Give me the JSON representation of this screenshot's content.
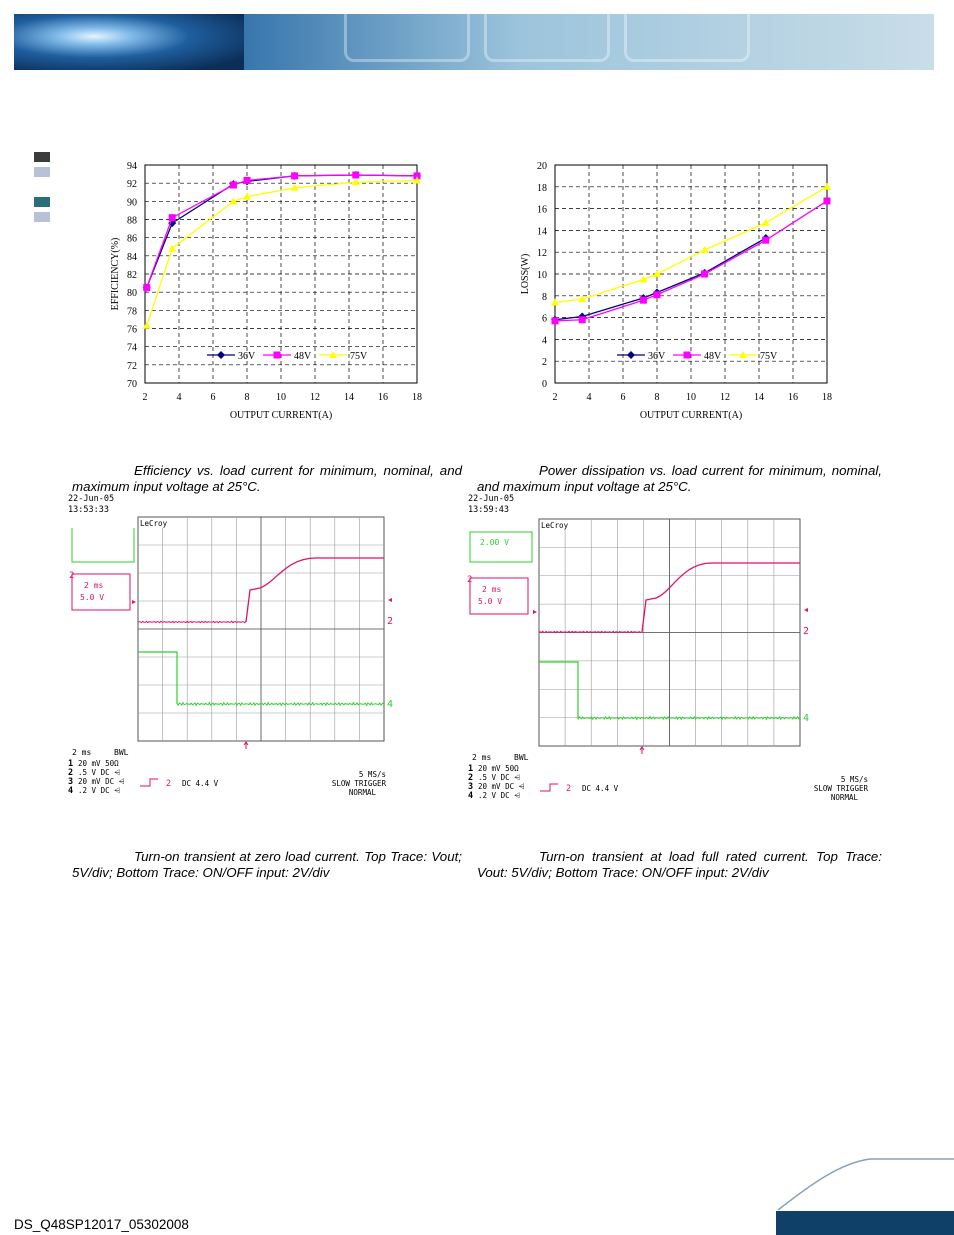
{
  "footer": {
    "doc_id": "DS_Q48SP12017_05302008"
  },
  "colors": {
    "series_36v": "#000080",
    "series_48v": "#ff00ff",
    "series_75v": "#ffff00",
    "scope_ch2": "#e0106e",
    "scope_ch4": "#2ed12e",
    "footer_bar": "#0e4068"
  },
  "captions": {
    "efficiency": "Efficiency vs. load current for minimum, nominal, and maximum input voltage at 25°C.",
    "loss": "Power dissipation vs. load current for minimum, nominal, and maximum input voltage at 25°C.",
    "turnon_zero": "Turn-on transient at zero load current. Top Trace: Vout; 5V/div; Bottom Trace: ON/OFF input: 2V/div",
    "turnon_full": "Turn-on transient at load full rated current. Top Trace: Vout: 5V/div; Bottom Trace: ON/OFF input: 2V/div"
  },
  "chart_data": [
    {
      "type": "line",
      "xlabel": "OUTPUT CURRENT(A)",
      "ylabel": "EFFICIENCY(%)",
      "xlim": [
        2,
        18
      ],
      "ylim": [
        70,
        94
      ],
      "xticks": [
        2,
        4,
        6,
        8,
        10,
        12,
        14,
        16,
        18
      ],
      "yticks": [
        70,
        72,
        74,
        76,
        78,
        80,
        82,
        84,
        86,
        88,
        90,
        92,
        94
      ],
      "grid": true,
      "legend": "bottom-center",
      "series": [
        {
          "name": "36V",
          "color": "#000080",
          "marker": "diamond",
          "x": [
            2.1,
            3.6,
            7.2,
            8.0,
            10.8,
            14.4,
            18.0
          ],
          "y": [
            80.5,
            87.6,
            91.9,
            92.2,
            92.8,
            92.9,
            92.8
          ]
        },
        {
          "name": "48V",
          "color": "#ff00ff",
          "marker": "square",
          "x": [
            2.1,
            3.6,
            7.2,
            8.0,
            10.8,
            14.4,
            18.0
          ],
          "y": [
            80.5,
            88.2,
            91.8,
            92.3,
            92.8,
            92.9,
            92.8
          ]
        },
        {
          "name": "75V",
          "color": "#ffff00",
          "marker": "triangle",
          "x": [
            2.1,
            3.6,
            7.2,
            8.0,
            10.8,
            14.4,
            18.0
          ],
          "y": [
            76.3,
            84.8,
            90.0,
            90.5,
            91.5,
            92.1,
            92.3
          ]
        }
      ]
    },
    {
      "type": "line",
      "xlabel": "OUTPUT CURRENT(A)",
      "ylabel": "LOSS(W)",
      "xlim": [
        2,
        18
      ],
      "ylim": [
        0,
        20
      ],
      "xticks": [
        2,
        4,
        6,
        8,
        10,
        12,
        14,
        16,
        18
      ],
      "yticks": [
        0,
        2,
        4,
        6,
        8,
        10,
        12,
        14,
        16,
        18,
        20
      ],
      "grid": true,
      "legend": "bottom-center",
      "series": [
        {
          "name": "36V",
          "color": "#000080",
          "marker": "diamond",
          "x": [
            2.0,
            3.6,
            7.2,
            8.0,
            10.8,
            14.4
          ],
          "y": [
            5.8,
            6.1,
            7.8,
            8.3,
            10.1,
            13.3
          ]
        },
        {
          "name": "48V",
          "color": "#ff00ff",
          "marker": "square",
          "x": [
            2.0,
            3.6,
            7.2,
            8.0,
            10.8,
            14.4,
            18.0
          ],
          "y": [
            5.7,
            5.8,
            7.6,
            8.1,
            10.0,
            13.1,
            16.7
          ]
        },
        {
          "name": "75V",
          "color": "#ffff00",
          "marker": "triangle",
          "x": [
            2.0,
            3.6,
            7.2,
            8.0,
            10.8,
            14.4,
            18.0
          ],
          "y": [
            7.4,
            7.7,
            9.5,
            10.0,
            12.2,
            14.7,
            18.0
          ]
        }
      ]
    }
  ],
  "scopes": [
    {
      "date": "22-Jun-05",
      "time": "13:53:33",
      "brand": "LeCroy",
      "ch2_box": {
        "label": "2",
        "timebase": "2 ms",
        "volts": "5.0 V"
      },
      "ch4_label": "4",
      "ch2_label": "2",
      "timediv": "2 ms",
      "bwl": "BWL",
      "channels": [
        {
          "num": "1",
          "text": "20 mV  50Ω"
        },
        {
          "num": "2",
          "text": ".5  V  DC ⩤"
        },
        {
          "num": "3",
          "text": "20 mV  DC ⩤"
        },
        {
          "num": "4",
          "text": ".2  V  DC ⩤"
        }
      ],
      "trigger_ch": "2",
      "trigger_level": "DC 4.4 V",
      "sample_rate": "5 MS/s",
      "trigger_mode": "SLOW TRIGGER",
      "trigger_state": "NORMAL"
    },
    {
      "date": "22-Jun-05",
      "time": "13:59:43",
      "brand": "LeCroy",
      "ch4_box_text": "2.00 V",
      "ch2_box": {
        "label": "2",
        "timebase": "2 ms",
        "volts": "5.0 V"
      },
      "ch4_label": "4",
      "ch2_label": "2",
      "timediv": "2 ms",
      "bwl": "BWL",
      "channels": [
        {
          "num": "1",
          "text": "20 mV  50Ω"
        },
        {
          "num": "2",
          "text": ".5  V  DC ⩤"
        },
        {
          "num": "3",
          "text": "20 mV  DC ⩤"
        },
        {
          "num": "4",
          "text": ".2  V  DC ⩤"
        }
      ],
      "trigger_ch": "2",
      "trigger_level": "DC 4.4 V",
      "sample_rate": "5 MS/s",
      "trigger_mode": "SLOW TRIGGER",
      "trigger_state": "NORMAL"
    }
  ]
}
